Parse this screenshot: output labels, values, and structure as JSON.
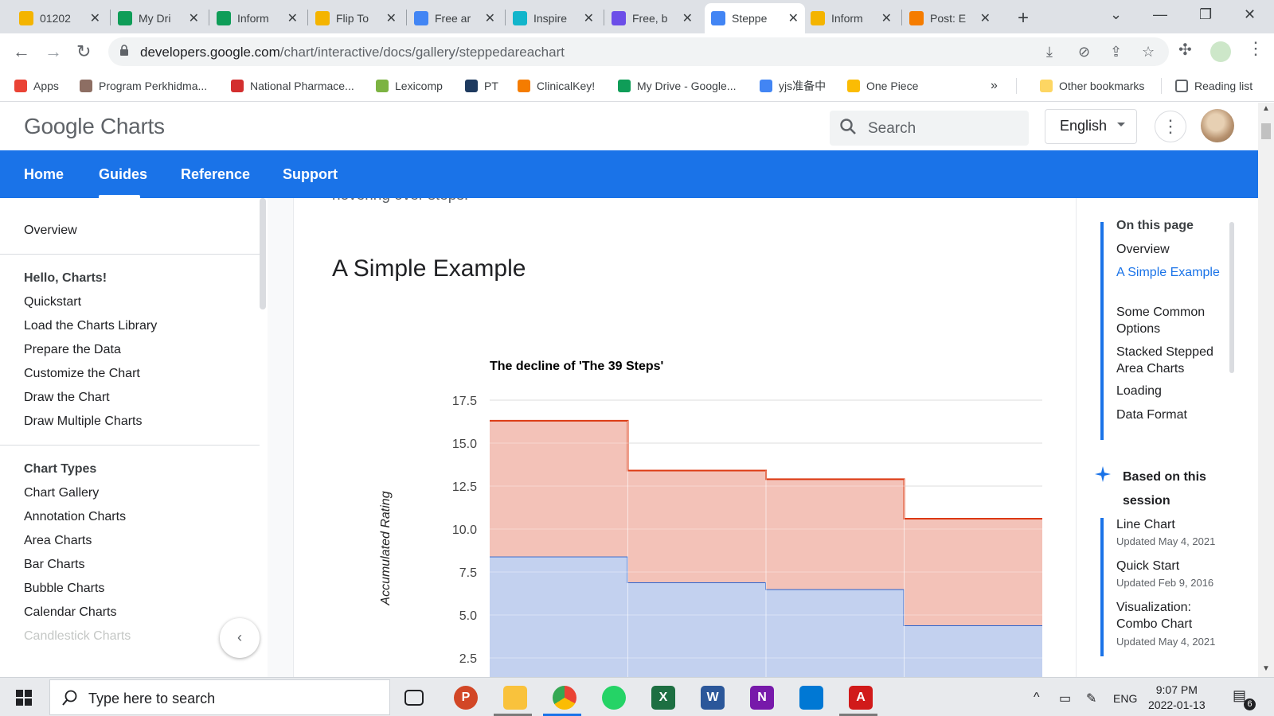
{
  "tabs": [
    {
      "title": "01202",
      "color": "#f4b400"
    },
    {
      "title": "My Dri",
      "color": "#0f9d58"
    },
    {
      "title": "Inform",
      "color": "#0f9d58"
    },
    {
      "title": "Flip To",
      "color": "#f4b400"
    },
    {
      "title": "Free ar",
      "color": "#4285f4"
    },
    {
      "title": "Inspire",
      "color": "#12b5cb"
    },
    {
      "title": "Free, b",
      "color": "#6c4ee8"
    },
    {
      "title": "Steppe",
      "color": "#4285f4",
      "active": true
    },
    {
      "title": "Inform",
      "color": "#f4b400"
    },
    {
      "title": "Post: E",
      "color": "#f57c00"
    }
  ],
  "address": {
    "host": "developers.google.com",
    "path": "/chart/interactive/docs/gallery/steppedareachart"
  },
  "bookmarks": [
    {
      "label": "Apps",
      "color": "#ea4335"
    },
    {
      "label": "Program Perkhidma...",
      "color": "#8d6e63"
    },
    {
      "label": "National Pharmace...",
      "color": "#d32f2f"
    },
    {
      "label": "Lexicomp",
      "color": "#7cb342"
    },
    {
      "label": "PT",
      "color": "#1e3a5f"
    },
    {
      "label": "ClinicalKey!",
      "color": "#f57c00"
    },
    {
      "label": "My Drive - Google...",
      "color": "#0f9d58"
    },
    {
      "label": "yjs准备中",
      "color": "#4285f4"
    },
    {
      "label": "One Piece",
      "color": "#fbbc04"
    }
  ],
  "bookmarks_more": "»",
  "other_bookmarks": "Other bookmarks",
  "reading_list": "Reading list",
  "header": {
    "logo_google": "Google",
    "logo_product": "Charts",
    "search_placeholder": "Search",
    "language": "English"
  },
  "nav": [
    "Home",
    "Guides",
    "Reference",
    "Support"
  ],
  "sidebar": {
    "overview": "Overview",
    "section1_title": "Hello, Charts!",
    "section1": [
      "Quickstart",
      "Load the Charts Library",
      "Prepare the Data",
      "Customize the Chart",
      "Draw the Chart",
      "Draw Multiple Charts"
    ],
    "section2_title": "Chart Types",
    "section2": [
      "Chart Gallery",
      "Annotation Charts",
      "Area Charts",
      "Bar Charts",
      "Bubble Charts",
      "Calendar Charts",
      "Candlestick Charts"
    ]
  },
  "main": {
    "cut_text": "hovering over steps.",
    "heading": "A Simple Example"
  },
  "chart_data": {
    "type": "area",
    "stepped": true,
    "stacked": true,
    "title": "The decline of 'The 39 Steps'",
    "ylabel": "Accumulated Rating",
    "yticks": [
      "17.5",
      "15.0",
      "12.5",
      "10.0",
      "7.5",
      "5.0",
      "2.5"
    ],
    "ylim": [
      0,
      17.5
    ],
    "grid": true,
    "categories": [
      "",
      "",
      "",
      ""
    ],
    "series": [
      {
        "values": [
          8.4,
          6.9,
          6.5,
          4.4
        ],
        "color": "#3366cc"
      },
      {
        "values": [
          7.9,
          6.5,
          6.4,
          6.2
        ],
        "color": "#dc3912"
      }
    ]
  },
  "toc": {
    "title": "On this page",
    "items": [
      "Overview",
      "A Simple Example",
      "Some Common Options",
      "Stacked Stepped Area Charts",
      "Loading",
      "Data Format"
    ],
    "current": 1,
    "based_title": "Based on this session",
    "recs": [
      {
        "title": "Line Chart",
        "date": "Updated May 4, 2021"
      },
      {
        "title": "Quick Start",
        "date": "Updated Feb 9, 2016"
      },
      {
        "title": "Visualization: Combo Chart",
        "date": "Updated May 4, 2021"
      }
    ]
  },
  "taskbar": {
    "search_placeholder": "Type here to search",
    "lang": "ENG",
    "time": "9:07 PM",
    "date": "2022-01-13",
    "notif_count": "6"
  }
}
